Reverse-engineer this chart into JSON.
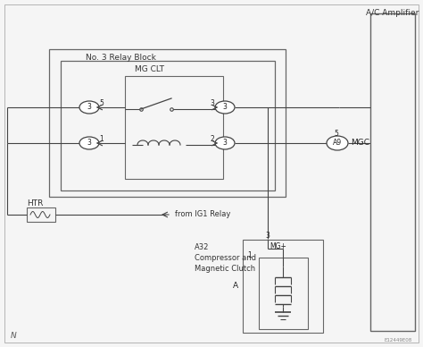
{
  "bg_color": "#f5f5f5",
  "line_color": "#444444",
  "border_color": "#666666",
  "title_relay_block": "No. 3 Relay Block",
  "title_ac_amplifier": "A/C Amplifier",
  "title_mg_clt": "MG CLT",
  "title_htr": "HTR",
  "title_from_ig1": "from IG1 Relay",
  "title_a32": "A32\nCompressor and\nMagnetic Clutch",
  "label_mgc": "MGC",
  "label_a9": "A9",
  "label_mg_plus": "MG+",
  "label_n": "N",
  "code": "E12449E08",
  "fig_w": 4.74,
  "fig_h": 3.88,
  "dpi": 100
}
